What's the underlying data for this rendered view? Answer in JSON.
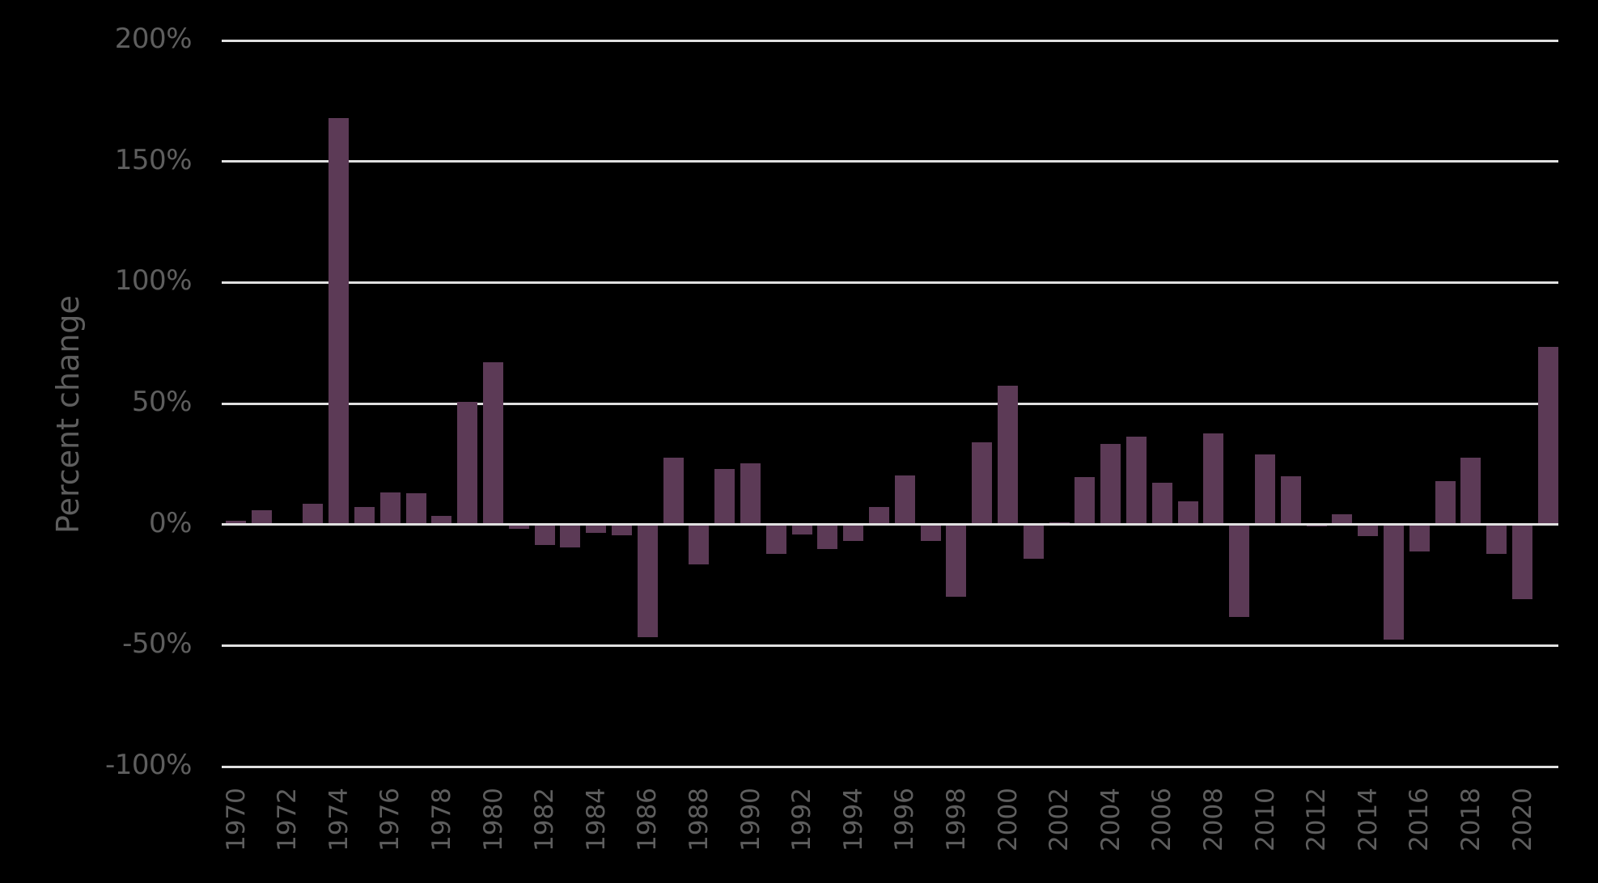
{
  "chart_data": {
    "type": "bar",
    "title": "",
    "xlabel": "",
    "ylabel": "Percent change",
    "ylim": [
      -100,
      200
    ],
    "yticks": [
      200,
      150,
      100,
      50,
      0,
      -50,
      -100
    ],
    "ytick_labels": [
      "200%",
      "150%",
      "100%",
      "50%",
      "0%",
      "-50%",
      "-100%"
    ],
    "xtick_labels": [
      "1970",
      "1972",
      "1974",
      "1976",
      "1978",
      "1980",
      "1982",
      "1984",
      "1986",
      "1988",
      "1990",
      "1992",
      "1994",
      "1996",
      "1998",
      "2000",
      "2002",
      "2004",
      "2006",
      "2008",
      "2010",
      "2012",
      "2014",
      "2016",
      "2018",
      "2020"
    ],
    "grid": true,
    "legend": null,
    "bar_color": "#5c3a56",
    "categories": [
      "1970",
      "1971",
      "1972",
      "1973",
      "1974",
      "1975",
      "1976",
      "1977",
      "1978",
      "1979",
      "1980",
      "1981",
      "1982",
      "1983",
      "1984",
      "1985",
      "1986",
      "1987",
      "1988",
      "1989",
      "1990",
      "1991",
      "1992",
      "1993",
      "1994",
      "1995",
      "1996",
      "1997",
      "1998",
      "1999",
      "2000",
      "2001",
      "2002",
      "2003",
      "2004",
      "2005",
      "2006",
      "2007",
      "2008",
      "2009",
      "2010",
      "2011",
      "2012",
      "2013",
      "2014",
      "2015",
      "2016",
      "2017",
      "2018",
      "2019",
      "2020",
      "2021"
    ],
    "values": [
      1.7,
      5.9,
      0,
      8.6,
      168,
      7.2,
      13.3,
      12.9,
      3.7,
      50.7,
      66.9,
      -1.9,
      -8.3,
      -9.5,
      -3.5,
      -4.6,
      -46.4,
      27.6,
      -16.6,
      22.9,
      25.2,
      -12.1,
      -4.1,
      -10.1,
      -6.8,
      7.1,
      20.2,
      -6.8,
      -29.8,
      33.9,
      57.2,
      -14.1,
      0.8,
      19.5,
      33.3,
      36.3,
      17.2,
      9.5,
      37.6,
      -38.1,
      28.9,
      19.9,
      -0.8,
      4.1,
      -4.8,
      -47.6,
      -11.1,
      17.8,
      27.5,
      -12.2,
      -30.9,
      73.4
    ]
  }
}
